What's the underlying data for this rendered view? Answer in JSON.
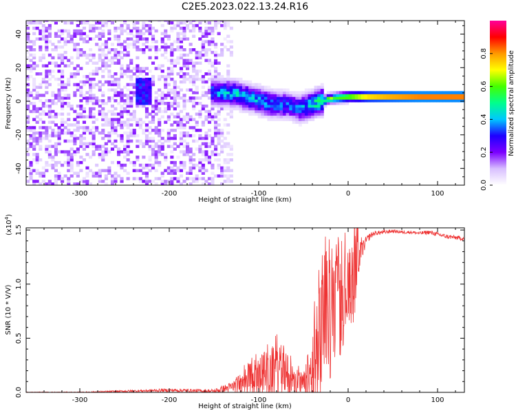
{
  "title": "C2E5.2023.022.13.24.R16",
  "chart_data": [
    {
      "type": "heatmap",
      "name": "spectrogram",
      "xlabel": "Height of straight line (km)",
      "ylabel": "Frequency (Hz)",
      "xlim": [
        -360,
        130
      ],
      "ylim": [
        -50,
        48
      ],
      "xticks": [
        -300,
        -200,
        -100,
        0,
        100
      ],
      "xtick_labels": [
        "-300",
        "-200",
        "-100",
        "0",
        "100"
      ],
      "yticks": [
        -40,
        -20,
        0,
        20,
        40
      ],
      "ytick_labels": [
        "-40",
        "-20",
        "0",
        "20",
        "40"
      ],
      "colorbar": {
        "label": "Normalized spectral amplitude",
        "range": [
          0,
          1
        ],
        "ticks": [
          0.0,
          0.2,
          0.4,
          0.6,
          0.8
        ],
        "tick_labels": [
          "0.0",
          "0.2",
          "0.4",
          "0.6",
          "0.8"
        ],
        "colors": [
          "#ffffff",
          "#d8bfff",
          "#7b00ff",
          "#1e00ff",
          "#00c8ff",
          "#00ff8c",
          "#44ff00",
          "#ffff00",
          "#ff9900",
          "#ff0000",
          "#ff0099"
        ]
      },
      "noise_region_x": [
        -360,
        -140
      ],
      "noise_level": 0.25,
      "tone_ridge": {
        "x": [
          -155,
          -130,
          -110,
          -90,
          -70,
          -55,
          -45,
          -35,
          -20,
          0,
          20,
          40,
          60,
          80,
          100,
          130
        ],
        "freq": [
          5,
          4,
          1,
          -2,
          -3,
          -5,
          -3,
          -1,
          1,
          2,
          2,
          2,
          2,
          2,
          2,
          2
        ],
        "amplitude": [
          0.35,
          0.4,
          0.4,
          0.38,
          0.33,
          0.35,
          0.42,
          0.48,
          0.55,
          0.65,
          0.8,
          0.85,
          0.88,
          0.9,
          0.9,
          0.9
        ]
      }
    },
    {
      "type": "line",
      "name": "snr",
      "xlabel": "Height of straight line (km)",
      "ylabel": "SNR (10 * V/V)",
      "scale_label": "(x10",
      "scale_exponent": "4",
      "scale_close": ")",
      "xlim": [
        -360,
        130
      ],
      "ylim": [
        0,
        1.52
      ],
      "xticks": [
        -300,
        -200,
        -100,
        0,
        100
      ],
      "xtick_labels": [
        "-300",
        "-200",
        "-100",
        "0",
        "100"
      ],
      "yticks": [
        0.0,
        0.5,
        1.0,
        1.5
      ],
      "ytick_labels": [
        "0.0",
        "0.5",
        "1.0",
        "1.5"
      ],
      "color": "#ee3333",
      "series": [
        {
          "name": "SNR",
          "x": [
            -360,
            -300,
            -250,
            -200,
            -150,
            -130,
            -110,
            -90,
            -80,
            -70,
            -60,
            -50,
            -40,
            -35,
            -30,
            -25,
            -20,
            -15,
            -10,
            -5,
            0,
            5,
            10,
            15,
            20,
            25,
            30,
            40,
            50,
            60,
            70,
            80,
            90,
            100,
            110,
            120,
            130
          ],
          "y": [
            0.0,
            0.0,
            0.01,
            0.02,
            0.01,
            0.05,
            0.12,
            0.15,
            0.18,
            0.15,
            0.1,
            0.08,
            0.15,
            0.3,
            0.6,
            0.8,
            0.7,
            0.75,
            0.8,
            0.9,
            1.0,
            1.1,
            1.2,
            1.3,
            1.4,
            1.45,
            1.47,
            1.48,
            1.49,
            1.48,
            1.48,
            1.47,
            1.48,
            1.46,
            1.44,
            1.43,
            1.42
          ]
        }
      ],
      "noise_envelope": [
        0.005,
        0.005,
        0.01,
        0.015,
        0.02,
        0.05,
        0.15,
        0.25,
        0.28,
        0.25,
        0.15,
        0.1,
        0.4,
        0.65,
        0.8,
        0.55,
        0.6,
        0.45,
        0.55,
        0.45,
        0.4,
        0.5,
        0.35,
        0.1,
        0.04,
        0.03,
        0.02,
        0.02,
        0.015,
        0.015,
        0.015,
        0.015,
        0.02,
        0.02,
        0.02,
        0.02,
        0.02
      ]
    }
  ]
}
